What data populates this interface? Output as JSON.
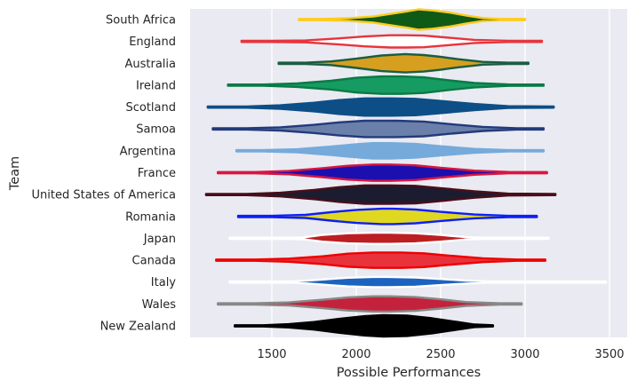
{
  "chart_data": {
    "type": "violin",
    "orientation": "horizontal",
    "xlabel": "Possible Performances",
    "ylabel": "Team",
    "xlim": [
      1000,
      3600
    ],
    "xticks": [
      1500,
      2000,
      2500,
      3000,
      3500
    ],
    "grid": true,
    "background": "#eaeaf2",
    "teams": [
      {
        "name": "South Africa",
        "min": 1660,
        "max": 3000,
        "center": 2370,
        "width": 0.4,
        "fill": "#0f5a16",
        "line": "#ffcc1d",
        "shape": [
          [
            1660,
            0.02
          ],
          [
            1800,
            0.05
          ],
          [
            1950,
            0.12
          ],
          [
            2100,
            0.3
          ],
          [
            2200,
            0.55
          ],
          [
            2300,
            0.8
          ],
          [
            2370,
            1.0
          ],
          [
            2450,
            0.9
          ],
          [
            2550,
            0.7
          ],
          [
            2650,
            0.4
          ],
          [
            2750,
            0.15
          ],
          [
            2850,
            0.05
          ],
          [
            3000,
            0.02
          ]
        ]
      },
      {
        "name": "England",
        "min": 1320,
        "max": 3100,
        "center": 2300,
        "width": 0.24,
        "fill": "#ffffff",
        "line": "#e8343b",
        "shape": [
          [
            1320,
            0.03
          ],
          [
            1500,
            0.06
          ],
          [
            1700,
            0.15
          ],
          [
            1900,
            0.5
          ],
          [
            2050,
            0.8
          ],
          [
            2200,
            1.0
          ],
          [
            2300,
            1.0
          ],
          [
            2400,
            0.95
          ],
          [
            2550,
            0.6
          ],
          [
            2700,
            0.25
          ],
          [
            2900,
            0.08
          ],
          [
            3100,
            0.03
          ]
        ]
      },
      {
        "name": "Australia",
        "min": 1540,
        "max": 3020,
        "center": 2290,
        "width": 0.36,
        "fill": "#d79f20",
        "line": "#1a5e40",
        "shape": [
          [
            1540,
            0.03
          ],
          [
            1700,
            0.06
          ],
          [
            1850,
            0.2
          ],
          [
            2000,
            0.5
          ],
          [
            2150,
            0.85
          ],
          [
            2290,
            1.0
          ],
          [
            2400,
            0.9
          ],
          [
            2500,
            0.7
          ],
          [
            2600,
            0.45
          ],
          [
            2750,
            0.15
          ],
          [
            2900,
            0.05
          ],
          [
            3020,
            0.02
          ]
        ]
      },
      {
        "name": "Ireland",
        "min": 1240,
        "max": 3110,
        "center": 2270,
        "width": 0.34,
        "fill": "#169b62",
        "line": "#0a7a45",
        "shape": [
          [
            1240,
            0.03
          ],
          [
            1450,
            0.06
          ],
          [
            1650,
            0.2
          ],
          [
            1850,
            0.5
          ],
          [
            2000,
            0.85
          ],
          [
            2150,
            1.0
          ],
          [
            2270,
            1.0
          ],
          [
            2400,
            0.9
          ],
          [
            2550,
            0.55
          ],
          [
            2700,
            0.25
          ],
          [
            2900,
            0.08
          ],
          [
            3110,
            0.03
          ]
        ]
      },
      {
        "name": "Scotland",
        "min": 1120,
        "max": 3170,
        "center": 2210,
        "width": 0.34,
        "fill": "#0d4e86",
        "line": "#0d4e86",
        "shape": [
          [
            1120,
            0.03
          ],
          [
            1350,
            0.07
          ],
          [
            1550,
            0.2
          ],
          [
            1750,
            0.5
          ],
          [
            1900,
            0.8
          ],
          [
            2050,
            1.0
          ],
          [
            2210,
            1.0
          ],
          [
            2350,
            0.95
          ],
          [
            2500,
            0.7
          ],
          [
            2700,
            0.35
          ],
          [
            2900,
            0.1
          ],
          [
            3170,
            0.03
          ]
        ]
      },
      {
        "name": "Samoa",
        "min": 1150,
        "max": 3110,
        "center": 2240,
        "width": 0.32,
        "fill": "#6a80aa",
        "line": "#233a7a",
        "shape": [
          [
            1150,
            0.03
          ],
          [
            1350,
            0.07
          ],
          [
            1550,
            0.2
          ],
          [
            1750,
            0.5
          ],
          [
            1900,
            0.8
          ],
          [
            2050,
            1.0
          ],
          [
            2240,
            1.0
          ],
          [
            2400,
            0.9
          ],
          [
            2550,
            0.6
          ],
          [
            2750,
            0.25
          ],
          [
            2950,
            0.07
          ],
          [
            3110,
            0.03
          ]
        ]
      },
      {
        "name": "Argentina",
        "min": 1290,
        "max": 3110,
        "center": 2200,
        "width": 0.3,
        "fill": "#75aadb",
        "line": "#75aadb",
        "shape": [
          [
            1290,
            0.03
          ],
          [
            1450,
            0.07
          ],
          [
            1650,
            0.2
          ],
          [
            1850,
            0.55
          ],
          [
            2000,
            0.85
          ],
          [
            2100,
            1.0
          ],
          [
            2200,
            1.0
          ],
          [
            2350,
            0.9
          ],
          [
            2500,
            0.6
          ],
          [
            2700,
            0.25
          ],
          [
            2900,
            0.08
          ],
          [
            3110,
            0.03
          ]
        ]
      },
      {
        "name": "France",
        "min": 1180,
        "max": 3130,
        "center": 2200,
        "width": 0.32,
        "fill": "#1c0fb0",
        "line": "#d81640",
        "shape": [
          [
            1180,
            0.03
          ],
          [
            1400,
            0.07
          ],
          [
            1600,
            0.2
          ],
          [
            1800,
            0.55
          ],
          [
            1950,
            0.85
          ],
          [
            2100,
            1.0
          ],
          [
            2200,
            1.0
          ],
          [
            2350,
            0.9
          ],
          [
            2500,
            0.6
          ],
          [
            2700,
            0.25
          ],
          [
            2900,
            0.08
          ],
          [
            3130,
            0.03
          ]
        ]
      },
      {
        "name": "United States of America",
        "min": 1110,
        "max": 3180,
        "center": 2200,
        "width": 0.36,
        "fill": "#1c1c30",
        "line": "#4a0e18",
        "shape": [
          [
            1110,
            0.03
          ],
          [
            1350,
            0.07
          ],
          [
            1550,
            0.2
          ],
          [
            1750,
            0.5
          ],
          [
            1900,
            0.8
          ],
          [
            2050,
            1.0
          ],
          [
            2200,
            1.0
          ],
          [
            2350,
            0.95
          ],
          [
            2500,
            0.7
          ],
          [
            2700,
            0.35
          ],
          [
            2900,
            0.1
          ],
          [
            3180,
            0.03
          ]
        ]
      },
      {
        "name": "Romania",
        "min": 1300,
        "max": 3070,
        "center": 2220,
        "width": 0.3,
        "fill": "#e0d820",
        "line": "#0d1ff5",
        "shape": [
          [
            1300,
            0.03
          ],
          [
            1500,
            0.07
          ],
          [
            1700,
            0.2
          ],
          [
            1850,
            0.55
          ],
          [
            2000,
            0.85
          ],
          [
            2150,
            1.0
          ],
          [
            2220,
            1.0
          ],
          [
            2350,
            0.9
          ],
          [
            2500,
            0.6
          ],
          [
            2700,
            0.25
          ],
          [
            2900,
            0.08
          ],
          [
            3070,
            0.03
          ]
        ]
      },
      {
        "name": "Japan",
        "min": 1250,
        "max": 3140,
        "center": 2200,
        "width": 0.22,
        "fill": "#bc1e22",
        "line": "#ffffff",
        "shape": [
          [
            1250,
            0.02
          ],
          [
            1550,
            0.04
          ],
          [
            1680,
            0.15
          ],
          [
            1800,
            0.6
          ],
          [
            1950,
            0.9
          ],
          [
            2100,
            1.0
          ],
          [
            2200,
            1.0
          ],
          [
            2350,
            0.9
          ],
          [
            2500,
            0.6
          ],
          [
            2650,
            0.2
          ],
          [
            2750,
            0.05
          ],
          [
            3140,
            0.02
          ]
        ]
      },
      {
        "name": "Canada",
        "min": 1170,
        "max": 3120,
        "center": 2270,
        "width": 0.3,
        "fill": "#e8323c",
        "line": "#ee0000",
        "shape": [
          [
            1170,
            0.03
          ],
          [
            1400,
            0.07
          ],
          [
            1600,
            0.2
          ],
          [
            1800,
            0.5
          ],
          [
            1950,
            0.85
          ],
          [
            2100,
            1.0
          ],
          [
            2270,
            1.0
          ],
          [
            2400,
            0.9
          ],
          [
            2550,
            0.6
          ],
          [
            2750,
            0.25
          ],
          [
            2950,
            0.08
          ],
          [
            3120,
            0.03
          ]
        ]
      },
      {
        "name": "Italy",
        "min": 1250,
        "max": 3480,
        "center": 2190,
        "width": 0.2,
        "fill": "#1c63c0",
        "line": "#ffffff",
        "shape": [
          [
            1250,
            0.02
          ],
          [
            1500,
            0.04
          ],
          [
            1650,
            0.15
          ],
          [
            1800,
            0.5
          ],
          [
            1950,
            0.85
          ],
          [
            2100,
            1.0
          ],
          [
            2190,
            1.0
          ],
          [
            2350,
            0.9
          ],
          [
            2500,
            0.6
          ],
          [
            2650,
            0.3
          ],
          [
            2780,
            0.08
          ],
          [
            3000,
            0.03
          ],
          [
            3480,
            0.02
          ]
        ]
      },
      {
        "name": "Wales",
        "min": 1180,
        "max": 2980,
        "center": 2200,
        "width": 0.3,
        "fill": "#c4223c",
        "line": "#888888",
        "shape": [
          [
            1180,
            0.03
          ],
          [
            1400,
            0.07
          ],
          [
            1600,
            0.2
          ],
          [
            1800,
            0.55
          ],
          [
            1950,
            0.85
          ],
          [
            2100,
            1.0
          ],
          [
            2200,
            1.0
          ],
          [
            2350,
            0.9
          ],
          [
            2500,
            0.6
          ],
          [
            2650,
            0.25
          ],
          [
            2850,
            0.08
          ],
          [
            2980,
            0.03
          ]
        ]
      },
      {
        "name": "New Zealand",
        "min": 1280,
        "max": 2810,
        "center": 2160,
        "width": 0.42,
        "fill": "#000000",
        "line": "#000000",
        "shape": [
          [
            1280,
            0.02
          ],
          [
            1450,
            0.05
          ],
          [
            1600,
            0.15
          ],
          [
            1750,
            0.35
          ],
          [
            1900,
            0.65
          ],
          [
            2050,
            0.9
          ],
          [
            2160,
            1.0
          ],
          [
            2300,
            0.95
          ],
          [
            2450,
            0.7
          ],
          [
            2600,
            0.35
          ],
          [
            2700,
            0.12
          ],
          [
            2810,
            0.03
          ]
        ]
      }
    ]
  }
}
